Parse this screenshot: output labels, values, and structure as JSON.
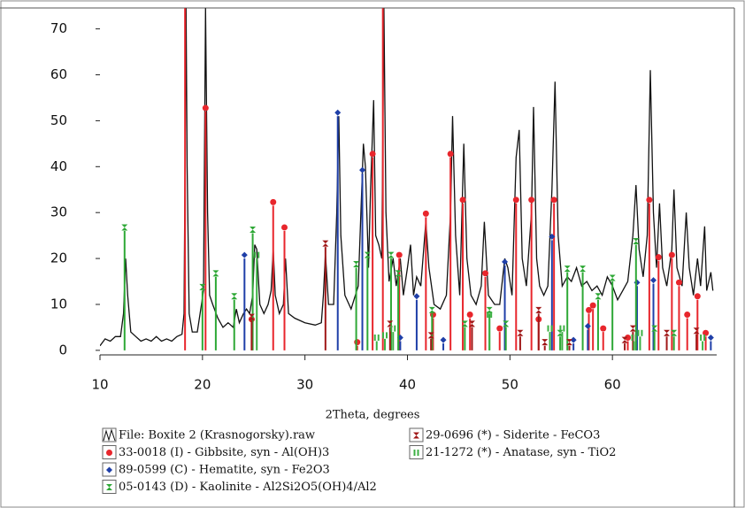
{
  "chart_data": {
    "type": "xrd",
    "x_label": "2Theta, degrees",
    "xlim": [
      10,
      70
    ],
    "xticks": [
      10,
      20,
      30,
      40,
      50,
      60
    ],
    "ylim": [
      -0.8,
      74.5
    ],
    "yticks": [
      0,
      10,
      20,
      30,
      40,
      50,
      60,
      70
    ],
    "series": [
      {
        "name": "File: Boxite 2 (Krasnogorsky).raw",
        "style": "line",
        "color": "#111111",
        "x": [
          10.0,
          10.5,
          11,
          11.5,
          12,
          12.3,
          12.5,
          12.7,
          13,
          13.5,
          14,
          14.5,
          15,
          15.5,
          16,
          16.5,
          17,
          17.5,
          18,
          18.2,
          18.3,
          18.4,
          18.5,
          18.7,
          19,
          19.5,
          19.9,
          20.1,
          20.3,
          20.5,
          20.7,
          21,
          21.5,
          22,
          22.5,
          23,
          23.3,
          23.6,
          24,
          24.3,
          24.6,
          24.9,
          25.1,
          25.3,
          25.6,
          26,
          26.4,
          26.7,
          26.9,
          27.1,
          27.5,
          27.9,
          28.1,
          28.4,
          29,
          30,
          31,
          31.6,
          31.8,
          32.0,
          32.3,
          32.8,
          33.1,
          33.3,
          33.5,
          33.9,
          34.5,
          35.2,
          35.7,
          35.9,
          36.2,
          36.4,
          36.7,
          36.9,
          37.2,
          37.5,
          37.7,
          37.9,
          38.2,
          38.6,
          38.9,
          39.3,
          39.6,
          40,
          40.3,
          40.6,
          40.9,
          41.3,
          41.8,
          42.1,
          42.6,
          43.2,
          43.8,
          44.2,
          44.4,
          44.7,
          45.1,
          45.5,
          45.8,
          46.2,
          46.7,
          47.2,
          47.5,
          47.9,
          48.5,
          49,
          49.5,
          49.8,
          50.2,
          50.6,
          50.9,
          51.2,
          51.6,
          52.1,
          52.3,
          52.6,
          52.9,
          53.3,
          53.7,
          54.1,
          54.4,
          54.7,
          55.1,
          55.6,
          56,
          56.5,
          57,
          57.5,
          58,
          58.5,
          59,
          59.5,
          60,
          60.5,
          61,
          61.5,
          62,
          62.3,
          62.6,
          63,
          63.4,
          63.7,
          64,
          64.3,
          64.6,
          64.9,
          65.3,
          65.8,
          66,
          66.3,
          66.8,
          67.2,
          67.5,
          67.9,
          68.3,
          68.6,
          69,
          69.2,
          69.6,
          69.8
        ],
        "values": [
          1,
          2.5,
          2,
          3,
          3,
          8,
          20,
          12,
          4,
          3,
          2,
          2.5,
          2,
          3,
          2,
          2.5,
          2,
          3,
          3.5,
          8,
          40,
          74.5,
          40,
          8,
          4,
          4,
          10,
          13,
          74.5,
          30,
          12,
          10,
          7,
          5,
          6,
          5,
          9,
          6,
          8,
          9,
          8,
          12,
          23,
          22,
          10,
          8,
          10,
          13,
          22,
          12,
          8,
          10,
          20,
          8,
          7,
          6,
          5.5,
          6,
          12,
          21,
          10,
          10,
          30,
          51,
          25,
          12,
          9,
          14,
          45,
          40,
          18,
          35,
          54.5,
          25,
          23,
          20,
          74.5,
          30,
          15,
          20,
          14,
          20,
          12,
          18,
          23,
          12,
          16,
          14,
          28,
          18,
          10,
          9,
          12,
          30,
          51,
          25,
          12,
          45,
          20,
          12,
          10,
          14,
          28,
          12,
          10,
          10,
          20,
          18,
          12,
          42,
          48,
          20,
          14,
          30,
          53,
          20,
          14,
          12,
          14,
          35,
          58.5,
          25,
          14,
          16,
          15,
          18,
          14,
          15,
          13,
          14,
          12,
          16,
          14,
          11,
          13,
          15,
          25,
          36,
          22,
          16,
          25,
          61,
          30,
          18,
          32,
          18,
          14,
          22,
          35,
          18,
          14,
          30,
          18,
          12,
          20,
          14,
          27,
          13,
          17,
          13
        ]
      },
      {
        "name": "33-0018 (I) - Gibbsite, syn - Al(OH)3",
        "style": "stick",
        "marker": "circle",
        "color": "#e8262c",
        "x": [
          18.3,
          20.3,
          24.8,
          26.9,
          28.0,
          35.1,
          36.6,
          37.6,
          39.2,
          41.8,
          42.5,
          44.2,
          45.4,
          46.1,
          47.6,
          49.0,
          50.6,
          52.1,
          52.8,
          54.3,
          57.7,
          58.1,
          59.1,
          61.5,
          63.6,
          64.5,
          65.8,
          66.5,
          67.3,
          68.3,
          69.1
        ],
        "values": [
          74.5,
          52,
          6,
          31.5,
          26,
          1,
          42,
          74.5,
          20,
          29,
          7,
          42,
          32,
          7,
          16,
          4,
          32,
          32,
          6,
          32,
          8,
          9,
          4,
          2,
          32,
          19.5,
          20,
          14,
          7,
          11,
          3
        ]
      },
      {
        "name": "89-0599 (C) - Hematite, syn - Fe2O3",
        "style": "stick",
        "marker": "diamond",
        "color": "#1f3fa8",
        "x": [
          24.1,
          33.2,
          35.6,
          39.3,
          40.9,
          43.5,
          49.5,
          54.1,
          56.2,
          57.6,
          62.4,
          64.0,
          69.6
        ],
        "values": [
          20,
          51,
          38.5,
          2,
          11,
          1.5,
          18.5,
          24,
          1.5,
          4.5,
          14,
          14.5,
          2
        ]
      },
      {
        "name": "05-0143 (D) - Kaolinite - Al2Si2O5(OH)4/Al2",
        "style": "stick",
        "marker": "hourglass",
        "color": "#2ea836",
        "x": [
          12.4,
          20.0,
          21.3,
          23.1,
          24.9,
          35.0,
          36.1,
          38.4,
          39.1,
          42.4,
          45.6,
          48.0,
          49.6,
          54.9,
          55.6,
          57.1,
          58.6,
          60.0,
          62.3,
          64.1,
          66.0
        ],
        "values": [
          26,
          13,
          16,
          11,
          25.5,
          18,
          20,
          20,
          16,
          8,
          5,
          8,
          5,
          3,
          17,
          17,
          11,
          15,
          23,
          4,
          3
        ]
      },
      {
        "name": "29-0696 (*) - Siderite - FeCO3",
        "style": "stick",
        "marker": "bowtie",
        "color": "#a01818",
        "x": [
          24.8,
          32.0,
          38.3,
          42.3,
          46.3,
          51.0,
          52.8,
          53.4,
          55.8,
          61.2,
          62.0,
          65.3,
          68.2
        ],
        "values": [
          6.5,
          22.5,
          5,
          2.5,
          5,
          3,
          8,
          1,
          1,
          1.5,
          4,
          3,
          3.5
        ]
      },
      {
        "name": "21-1272 (*) - Anatase, syn - TiO2",
        "style": "stick",
        "marker": "bars",
        "color": "#3cb043",
        "x": [
          25.3,
          37.0,
          37.8,
          38.6,
          48.0,
          53.9,
          55.1,
          62.1,
          62.7,
          68.8
        ],
        "values": [
          20,
          2,
          2.5,
          4,
          7,
          4,
          4,
          2,
          3,
          2
        ]
      }
    ]
  }
}
